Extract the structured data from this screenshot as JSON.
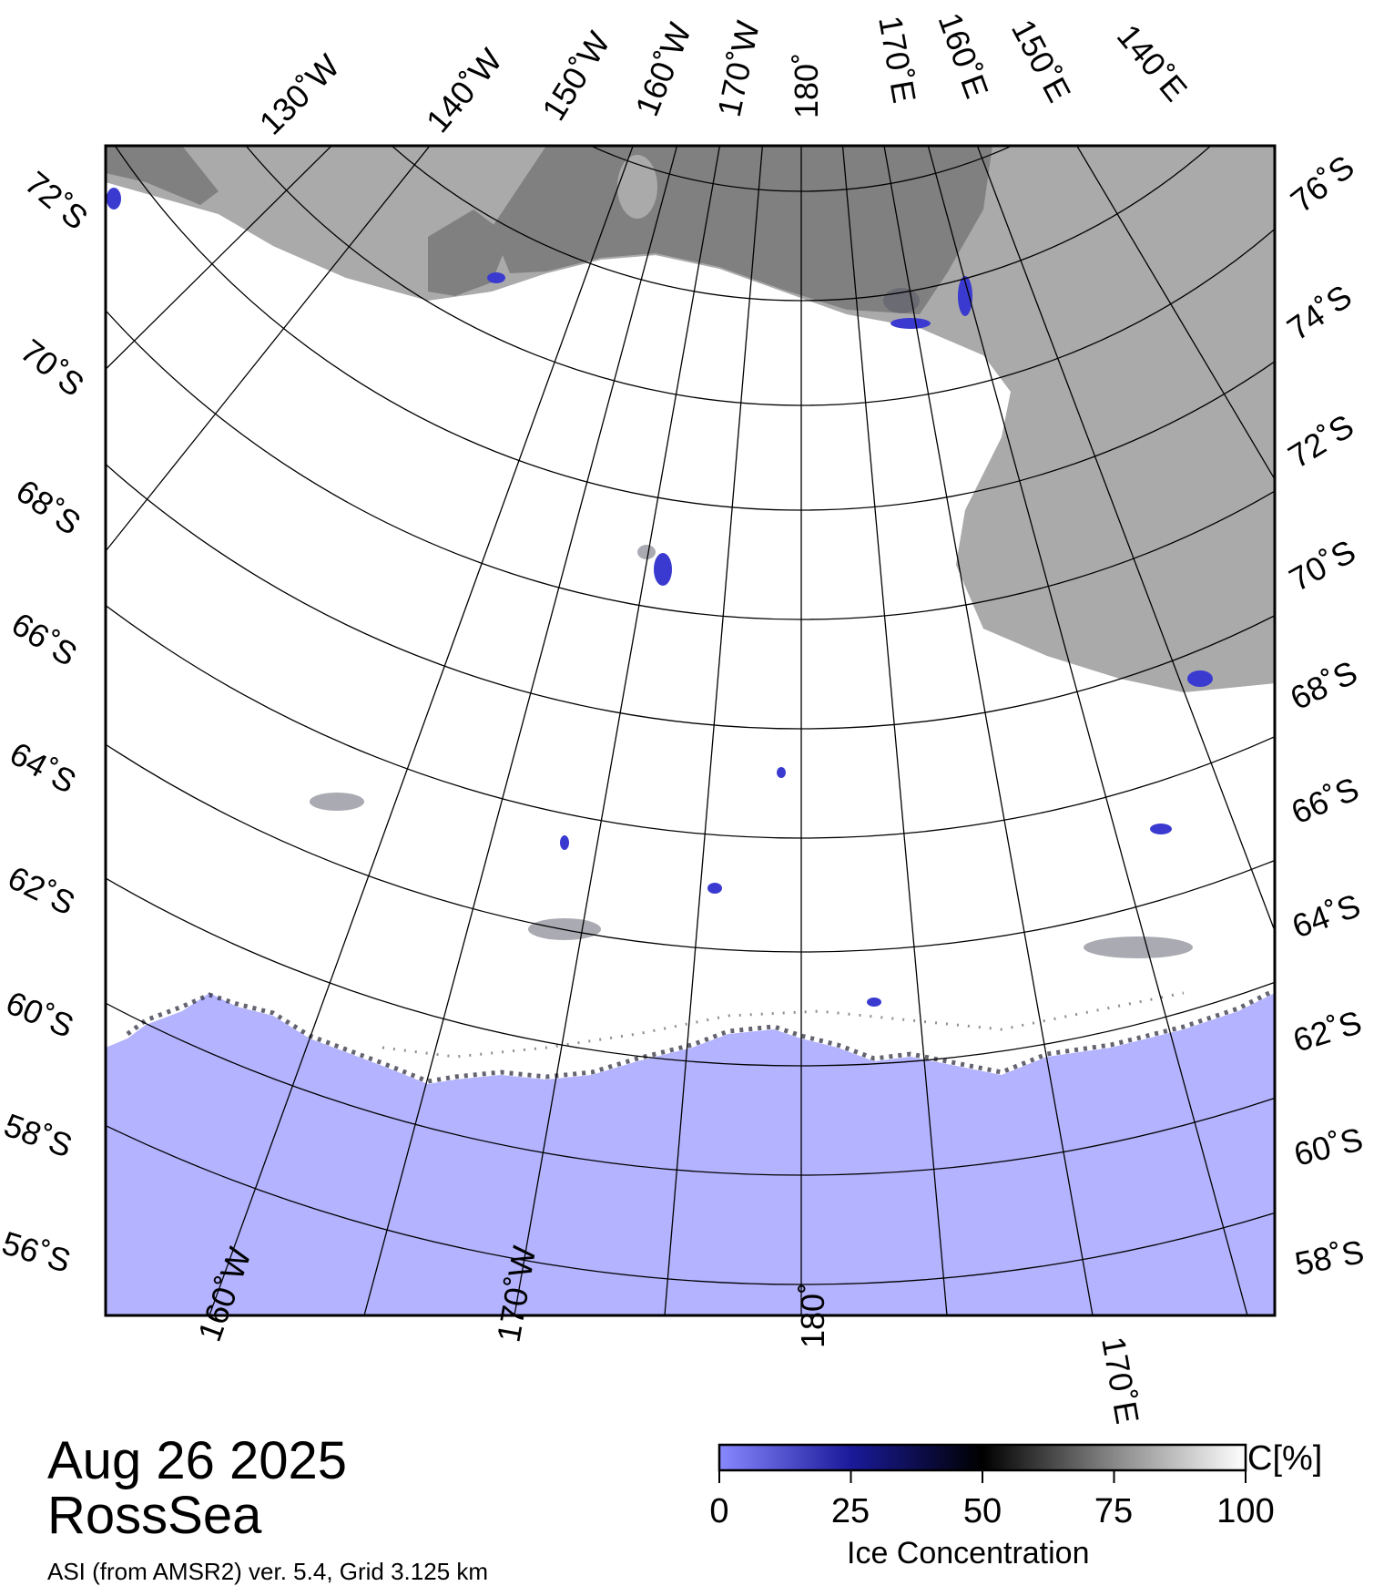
{
  "header": {
    "date": "Aug 26 2025",
    "region": "RossSea",
    "source": "ASI (from AMSR2) ver. 5.4,  Grid 3.125 km"
  },
  "colorbar": {
    "ticks": [
      "0",
      "25",
      "50",
      "75",
      "100"
    ],
    "unit": "C[%]",
    "title": "Ice Concentration",
    "stops": [
      "#8888ff",
      "#1a1a9a",
      "#000000",
      "#888888",
      "#ffffff"
    ]
  },
  "graticule": {
    "top_lon": [
      "130˚W",
      "140˚W",
      "150˚W",
      "160˚W",
      "170˚W",
      "180˚",
      "170˚E",
      "160˚E",
      "150˚E",
      "140˚E"
    ],
    "bottom_lon": [
      "160˚W",
      "170˚W",
      "180˚",
      "170˚E"
    ],
    "left_lat": [
      "72˚S",
      "70˚S",
      "68˚S",
      "66˚S",
      "64˚S",
      "62˚S",
      "60˚S",
      "58˚S",
      "56˚S"
    ],
    "right_lat": [
      "76˚S",
      "74˚S",
      "72˚S",
      "70˚S",
      "68˚S",
      "66˚S",
      "64˚S",
      "62˚S",
      "60˚S",
      "58˚S"
    ]
  },
  "colors": {
    "ocean": "#b3b3ff",
    "ice": "#ffffff",
    "land": "#aaaaaa",
    "ice_shelf": "#808080"
  }
}
